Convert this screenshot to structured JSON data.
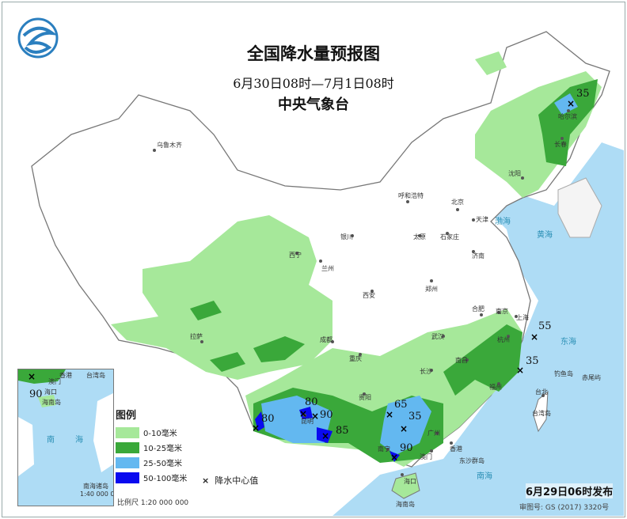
{
  "title": "全国降水量预报图",
  "period": "6月30日08时—7月1日08时",
  "issuer": "中央气象台",
  "logo_text": "气",
  "legend": {
    "heading": "图例",
    "items": [
      {
        "label": "0-10毫米",
        "color": "#a6e89a"
      },
      {
        "label": "10-25毫米",
        "color": "#3aa83a"
      },
      {
        "label": "25-50毫米",
        "color": "#63b8f0"
      },
      {
        "label": "50-100毫米",
        "color": "#0a0aef"
      }
    ],
    "center_marker": "×",
    "center_label": "降水中心值"
  },
  "scale": "比例尺  1:20 000 000",
  "issued": "6月29日06时发布",
  "approval": "审图号: GS (2017) 3320号",
  "rain_centers": [
    "35",
    "55",
    "35",
    "80",
    "80",
    "90",
    "85",
    "65",
    "35",
    "90"
  ],
  "cities": [
    "乌鲁木齐",
    "哈尔滨",
    "长春",
    "沈阳",
    "呼和浩特",
    "北京",
    "天津",
    "石家庄",
    "太原",
    "济南",
    "银川",
    "兰州",
    "西宁",
    "西安",
    "郑州",
    "南京",
    "合肥",
    "上海",
    "杭州",
    "武汉",
    "南昌",
    "长沙",
    "福州",
    "台北",
    "成都",
    "重庆",
    "贵阳",
    "昆明",
    "南宁",
    "广州",
    "香港",
    "澳门",
    "海口",
    "拉萨"
  ],
  "seas": [
    "渤海",
    "黄海",
    "东海",
    "南海",
    "台湾岛",
    "海南岛",
    "东沙群岛",
    "钓鱼岛",
    "赤尾屿"
  ],
  "inset": {
    "labels": [
      "南",
      "海",
      "南海诸岛",
      "1:40 000 000",
      "海口",
      "海南岛",
      "香港",
      "台湾岛",
      "澳门"
    ],
    "value": "90"
  },
  "colors": {
    "sea": "#aedcf5",
    "land": "#ffffff",
    "border": "#888888"
  }
}
